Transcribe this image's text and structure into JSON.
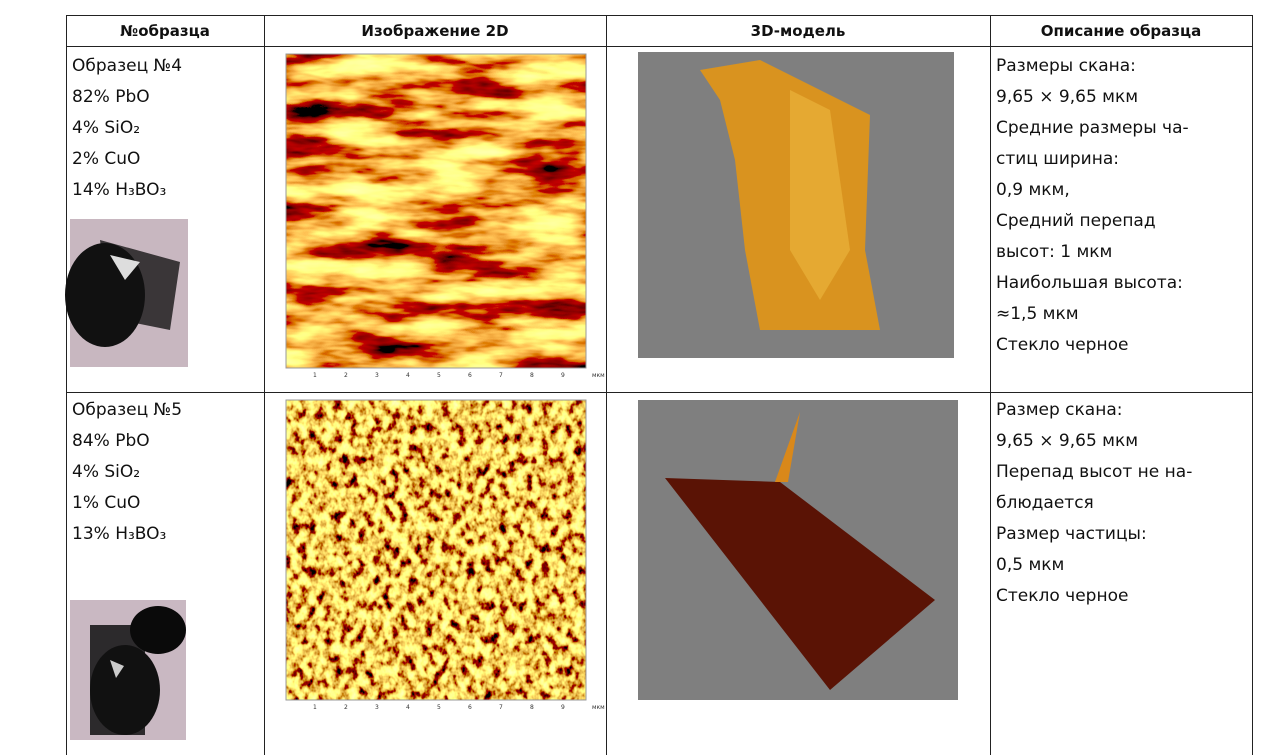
{
  "table": {
    "header": [
      "№образца",
      "Изображение 2D",
      "3D-модель",
      "Описание образца"
    ],
    "rows": [
      {
        "sample": [
          "Образец №4",
          "82% PbO",
          "4% SiO₂",
          "2% CuO",
          "14% H₃BO₃"
        ],
        "scan_axis": [
          "1",
          "2",
          "3",
          "4",
          "5",
          "6",
          "7",
          "8",
          "9",
          "мкм"
        ],
        "description": [
          "Размеры скана:",
          "9,65 × 9,65 мкм",
          "Средние размеры ча-",
          "стиц ширина:",
          "0,9 мкм,",
          "Средний перепад",
          "высот: 1 мкм",
          "Наибольшая высота:",
          "≈1,5 мкм",
          "Стекло черное"
        ]
      },
      {
        "sample": [
          "Образец №5",
          "84% PbO",
          "4% SiO₂",
          "1% CuO",
          "13% H₃BO₃"
        ],
        "scan_axis": [
          "1",
          "2",
          "3",
          "4",
          "5",
          "6",
          "7",
          "8",
          "9",
          "мкм"
        ],
        "description": [
          "Размер скана:",
          "9,65 × 9,65 мкм",
          "Перепад высот не на-",
          "блюдается",
          "Размер частицы:",
          "0,5 мкм",
          "Стекло черное"
        ]
      }
    ]
  }
}
